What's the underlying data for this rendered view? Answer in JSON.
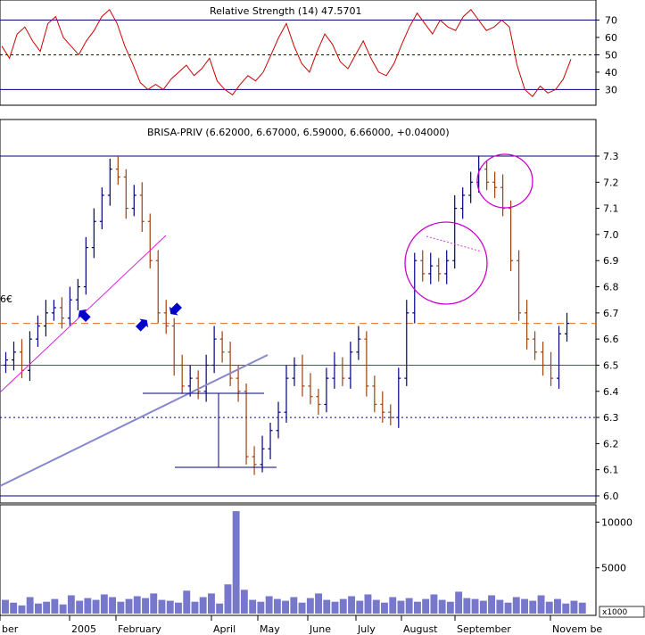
{
  "chart_data": [
    {
      "type": "line",
      "title": "Relative Strength (14) 47.5701",
      "indicator": "RSI",
      "yticks": [
        30,
        40,
        50,
        60,
        70
      ],
      "ylim": [
        22,
        80
      ],
      "reference_lines": [
        70,
        50,
        30
      ],
      "color": "#cc0000",
      "values": [
        55,
        48,
        62,
        66,
        58,
        52,
        68,
        72,
        60,
        55,
        50,
        58,
        64,
        72,
        76,
        68,
        55,
        45,
        34,
        30,
        33,
        30,
        36,
        40,
        44,
        38,
        42,
        48,
        35,
        30,
        27,
        33,
        38,
        35,
        40,
        50,
        60,
        68,
        55,
        45,
        40,
        52,
        62,
        56,
        46,
        42,
        50,
        58,
        48,
        40,
        38,
        45,
        56,
        66,
        74,
        68,
        62,
        70,
        66,
        64,
        72,
        76,
        70,
        64,
        66,
        70,
        66,
        44,
        30,
        26,
        32,
        28,
        30,
        36,
        47.5
      ]
    },
    {
      "type": "candlestick",
      "title": "BRISA-PRIV (6.62000, 6.67000, 6.59000, 6.66000, +0.04000)",
      "symbol": "BRISA-PRIV",
      "ohlc_last": {
        "open": 6.62,
        "high": 6.67,
        "low": 6.59,
        "close": 6.66,
        "change": 0.04
      },
      "ylim": [
        5.97,
        7.34
      ],
      "yticks": [
        6.0,
        6.1,
        6.2,
        6.3,
        6.4,
        6.5,
        6.6,
        6.7,
        6.8,
        6.9,
        7.0,
        7.1,
        7.2,
        7.3
      ],
      "left_edge_label": "6€",
      "horizontal_lines": [
        {
          "value": 7.3,
          "style": "solid",
          "color": "#000080"
        },
        {
          "value": 6.66,
          "style": "dashed",
          "color": "#e07020"
        },
        {
          "value": 6.5,
          "style": "solid",
          "color": "#cc00cc"
        },
        {
          "value": 6.3,
          "style": "dotted",
          "color": "#000080"
        },
        {
          "value": 6.0,
          "style": "solid",
          "color": "#000080"
        }
      ],
      "closes": [
        6.52,
        6.55,
        6.48,
        6.6,
        6.65,
        6.7,
        6.72,
        6.68,
        6.75,
        6.8,
        6.95,
        7.05,
        7.15,
        7.25,
        7.22,
        7.1,
        7.15,
        7.05,
        6.9,
        6.7,
        6.65,
        6.5,
        6.42,
        6.45,
        6.4,
        6.5,
        6.6,
        6.55,
        6.45,
        6.4,
        6.15,
        6.12,
        6.18,
        6.25,
        6.32,
        6.45,
        6.5,
        6.42,
        6.38,
        6.35,
        6.45,
        6.5,
        6.45,
        6.55,
        6.6,
        6.42,
        6.35,
        6.32,
        6.3,
        6.45,
        6.7,
        6.9,
        6.85,
        6.88,
        6.85,
        6.9,
        7.1,
        7.15,
        7.2,
        7.25,
        7.2,
        7.18,
        7.1,
        6.9,
        6.7,
        6.6,
        6.55,
        6.5,
        6.45,
        6.62,
        6.66
      ],
      "volume": {
        "yticks": [
          5000,
          10000
        ],
        "ylim": [
          0,
          11500
        ],
        "unit": "x1000",
        "values": [
          1500,
          1200,
          900,
          1800,
          1100,
          1300,
          1600,
          1000,
          2000,
          1400,
          1700,
          1500,
          2100,
          1800,
          1300,
          1600,
          1900,
          1700,
          2200,
          1500,
          1400,
          1200,
          2500,
          1300,
          1800,
          2200,
          1100,
          3200,
          11200,
          2600,
          1500,
          1300,
          1900,
          1600,
          1400,
          1800,
          1200,
          1700,
          2200,
          1500,
          1300,
          1600,
          1900,
          1400,
          2100,
          1500,
          1200,
          1800,
          1400,
          1700,
          1300,
          1600,
          2100,
          1500,
          1300,
          2400,
          1700,
          1600,
          1400,
          2000,
          1500,
          1200,
          1800,
          1600,
          1400,
          2000,
          1300,
          1600,
          1100,
          1400,
          1200
        ]
      },
      "xticks": [
        "ber",
        "2005",
        "February",
        "April",
        "May",
        "June",
        "July",
        "August",
        "September",
        "Novem be"
      ]
    }
  ]
}
